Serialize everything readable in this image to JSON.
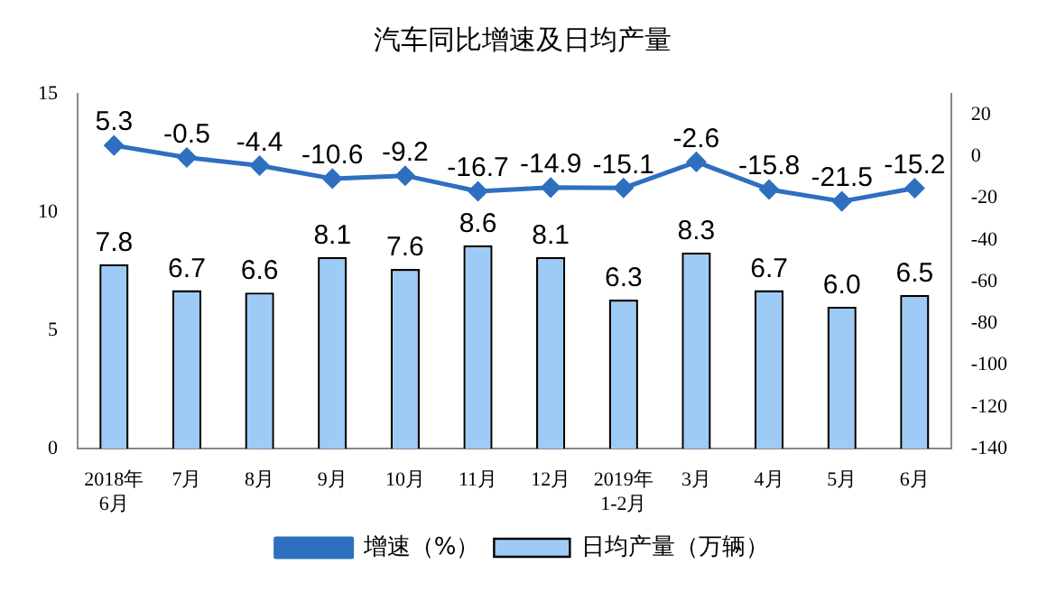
{
  "chart_data": {
    "type": "bar",
    "title": "汽车同比增速及日均产量",
    "categories": [
      "2018年\n6月",
      "7月",
      "8月",
      "9月",
      "10月",
      "11月",
      "12月",
      "2019年\n1-2月",
      "3月",
      "4月",
      "5月",
      "6月"
    ],
    "series": [
      {
        "name": "日均产量（万辆）",
        "color": "#9dcbf5",
        "values": [
          7.8,
          6.7,
          6.6,
          8.1,
          7.6,
          8.6,
          8.1,
          6.3,
          8.3,
          6.7,
          6.0,
          6.5
        ],
        "value_labels": [
          "7.8",
          "6.7",
          "6.6",
          "8.1",
          "7.6",
          "8.6",
          "8.1",
          "6.3",
          "8.3",
          "6.7",
          "6.0",
          "6.5"
        ]
      },
      {
        "name": "增速（%）",
        "type": "line",
        "axis": "y2",
        "color": "#2e6fc0",
        "marker": "diamond",
        "values": [
          5.3,
          -0.5,
          -4.4,
          -10.6,
          -9.2,
          -16.7,
          -14.9,
          -15.1,
          -2.6,
          -15.8,
          -21.5,
          -15.2
        ],
        "value_labels": [
          "5.3",
          "-0.5",
          "-4.4",
          "-10.6",
          "-9.2",
          "-16.7",
          "-14.9",
          "-15.1",
          "-2.6",
          "-15.8",
          "-21.5",
          "-15.2"
        ]
      }
    ],
    "ylim": [
      0,
      15
    ],
    "yticks": [
      0,
      5,
      10,
      15
    ],
    "y2lim": [
      -140,
      30
    ],
    "y2ticks": [
      -140,
      -120,
      -100,
      -80,
      -60,
      -40,
      -20,
      0,
      20
    ],
    "legend": "bottom",
    "grid": false
  }
}
